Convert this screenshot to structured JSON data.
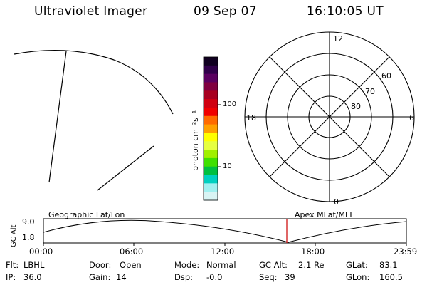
{
  "header": {
    "instrument": "Ultraviolet Imager",
    "date": "09 Sep 07",
    "time": "16:10:05 UT"
  },
  "colorbar": {
    "title": "photon cm⁻²s⁻¹",
    "labels": [
      "100",
      "10"
    ],
    "colors": [
      "#100020",
      "#30004a",
      "#5a0060",
      "#800040",
      "#a80020",
      "#d00010",
      "#f00000",
      "#ff6a00",
      "#ffa000",
      "#ffff00",
      "#e6ff40",
      "#a0f000",
      "#40e000",
      "#00c040",
      "#00d0c0",
      "#a0f0f0",
      "#d8f4f4"
    ]
  },
  "polar_plot": {
    "mlt_labels": [
      "12",
      "6",
      "0",
      "18"
    ],
    "lat_labels": [
      "60",
      "70",
      "80"
    ]
  },
  "timeline": {
    "left_label": "Geographic Lat/Lon",
    "right_label": "Apex MLat/MLT",
    "axis_title": "GC Alt",
    "y_max": "9.0",
    "y_min": "1.8",
    "time_ticks": [
      "00:00",
      "06:00",
      "12:00",
      "18:00",
      "23:59"
    ],
    "marker_color": "#cc0000"
  },
  "info": {
    "flt_label": "Flt:",
    "flt_value": "LBHL",
    "door_label": "Door:",
    "door_value": "Open",
    "mode_label": "Mode:",
    "mode_value": "Normal",
    "gcalt_label": "GC Alt:",
    "gcalt_value": "2.1 Re",
    "glat_label": "GLat:",
    "glat_value": "83.1",
    "ip_label": "IP:",
    "ip_value": "36.0",
    "gain_label": "Gain:",
    "gain_value": "14",
    "dsp_label": "Dsp:",
    "dsp_value": "-0.0",
    "seq_label": "Seq:",
    "seq_value": "39",
    "glon_label": "GLon:",
    "glon_value": "160.5"
  }
}
